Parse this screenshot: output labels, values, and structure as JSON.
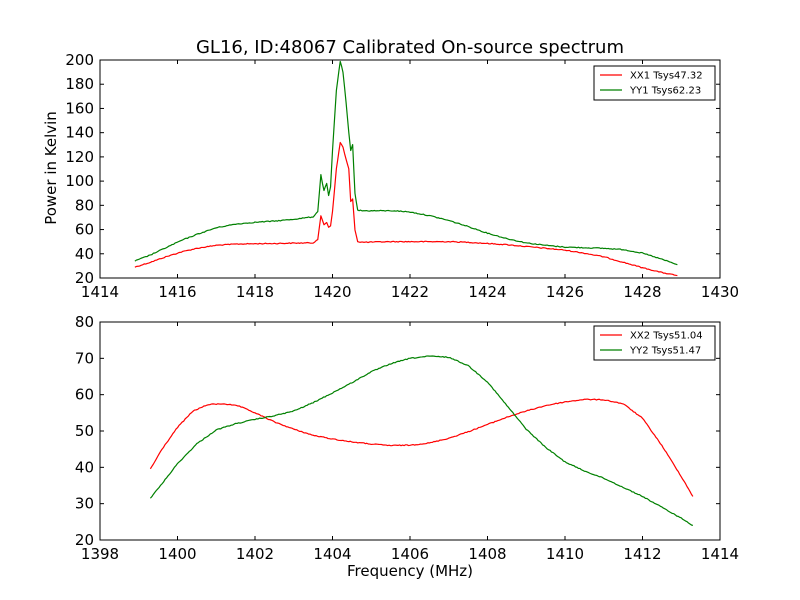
{
  "figure": {
    "title": "GL16, ID:48067 Calibrated On-source spectrum",
    "xlabel": "Frequency (MHz)",
    "ylabel": "Power in Kelvin"
  },
  "colors": {
    "series_1": "#ff0000",
    "series_2": "#008000",
    "frame": "#000000",
    "background": "#ffffff"
  },
  "chart_data": [
    {
      "type": "line",
      "title": "GL16, ID:48067 Calibrated On-source spectrum",
      "xlabel": "",
      "ylabel": "Power in Kelvin",
      "xlim": [
        1414,
        1430
      ],
      "ylim": [
        20,
        200
      ],
      "xticks": [
        "1414",
        "1416",
        "1418",
        "1420",
        "1422",
        "1424",
        "1426",
        "1428",
        "1430"
      ],
      "yticks": [
        "20",
        "40",
        "60",
        "80",
        "100",
        "120",
        "140",
        "160",
        "180",
        "200"
      ],
      "grid": false,
      "legend_position": "top-right",
      "series": [
        {
          "name": "XX1 Tsys47.32",
          "color": "#ff0000",
          "x": [
            1414.9,
            1415.3,
            1415.7,
            1416.1,
            1416.5,
            1417.0,
            1417.5,
            1418.0,
            1418.5,
            1419.0,
            1419.5,
            1419.62,
            1419.7,
            1419.78,
            1419.85,
            1419.9,
            1419.95,
            1420.0,
            1420.1,
            1420.2,
            1420.27,
            1420.35,
            1420.42,
            1420.47,
            1420.52,
            1420.58,
            1420.65,
            1420.8,
            1421.5,
            1422.0,
            1422.5,
            1423.0,
            1423.5,
            1424.0,
            1424.5,
            1425.0,
            1425.5,
            1426.0,
            1426.5,
            1427.0,
            1427.5,
            1428.0,
            1428.5,
            1428.9
          ],
          "y": [
            29,
            33,
            37.5,
            41.5,
            44.5,
            47,
            48,
            48.3,
            48.5,
            48.8,
            49,
            52,
            71,
            64,
            66,
            62,
            63,
            75,
            110,
            132,
            128,
            118,
            110,
            83,
            85,
            60,
            50,
            49.5,
            50,
            50,
            50,
            50,
            49.5,
            48.5,
            47.5,
            46,
            44.5,
            43,
            40.5,
            37.5,
            33,
            28.5,
            24.5,
            22
          ]
        },
        {
          "name": "YY1 Tsys62.23",
          "color": "#008000",
          "x": [
            1414.9,
            1415.3,
            1415.7,
            1416.1,
            1416.5,
            1417.0,
            1417.5,
            1418.0,
            1418.5,
            1419.0,
            1419.5,
            1419.62,
            1419.7,
            1419.78,
            1419.85,
            1419.9,
            1419.95,
            1420.0,
            1420.1,
            1420.2,
            1420.27,
            1420.35,
            1420.42,
            1420.47,
            1420.52,
            1420.58,
            1420.65,
            1420.8,
            1421.2,
            1421.6,
            1422.0,
            1422.5,
            1423.0,
            1423.5,
            1424.0,
            1424.5,
            1425.0,
            1425.5,
            1426.0,
            1426.5,
            1427.0,
            1427.5,
            1428.0,
            1428.5,
            1428.9
          ],
          "y": [
            34,
            39,
            45,
            51,
            56,
            61.5,
            64.5,
            66,
            67,
            68.5,
            70.5,
            75,
            105,
            92,
            98,
            88,
            95,
            125,
            175,
            199,
            190,
            165,
            140,
            125,
            130,
            90,
            76,
            75.5,
            75.5,
            75.5,
            74.5,
            71.5,
            67.5,
            62.5,
            57,
            52.5,
            49,
            47,
            45.5,
            45,
            44.5,
            43.5,
            40.5,
            35.5,
            31
          ]
        }
      ]
    },
    {
      "type": "line",
      "title": "",
      "xlabel": "Frequency (MHz)",
      "ylabel": "",
      "xlim": [
        1398,
        1414
      ],
      "ylim": [
        20,
        80
      ],
      "xticks": [
        "1398",
        "1400",
        "1402",
        "1404",
        "1406",
        "1408",
        "1410",
        "1412",
        "1414"
      ],
      "yticks": [
        "20",
        "30",
        "40",
        "50",
        "60",
        "70",
        "80"
      ],
      "grid": false,
      "legend_position": "top-right",
      "series": [
        {
          "name": "XX2 Tsys51.04",
          "color": "#ff0000",
          "x": [
            1399.3,
            1399.6,
            1400.0,
            1400.4,
            1400.8,
            1401.2,
            1401.6,
            1402.0,
            1402.5,
            1403.0,
            1403.5,
            1404.0,
            1404.5,
            1405.0,
            1405.5,
            1406.0,
            1406.5,
            1407.0,
            1407.5,
            1408.0,
            1408.5,
            1409.0,
            1409.5,
            1410.0,
            1410.5,
            1411.0,
            1411.5,
            1412.0,
            1412.5,
            1413.0,
            1413.3
          ],
          "y": [
            39.5,
            45,
            51,
            55.5,
            57.3,
            57.5,
            56.8,
            55,
            52.5,
            50.5,
            48.8,
            47.8,
            47,
            46.4,
            46,
            46.1,
            46.7,
            48,
            49.8,
            51.8,
            53.8,
            55.5,
            57,
            58,
            58.7,
            58.6,
            57.5,
            53.5,
            46,
            37.5,
            32
          ]
        },
        {
          "name": "YY2 Tsys51.47",
          "color": "#008000",
          "x": [
            1399.3,
            1399.6,
            1400.0,
            1400.5,
            1401.0,
            1401.5,
            1402.0,
            1402.5,
            1403.0,
            1403.5,
            1404.0,
            1404.5,
            1405.0,
            1405.5,
            1406.0,
            1406.5,
            1407.0,
            1407.5,
            1408.0,
            1408.5,
            1409.0,
            1409.5,
            1410.0,
            1410.5,
            1411.0,
            1411.5,
            1412.0,
            1412.5,
            1413.0,
            1413.3
          ],
          "y": [
            31.5,
            35.5,
            41,
            46.5,
            50.3,
            52,
            53.2,
            54.2,
            55.5,
            57.8,
            60.5,
            63.3,
            66.3,
            68.5,
            70,
            70.6,
            70.3,
            68,
            63.5,
            57,
            50.5,
            45.5,
            41.5,
            39,
            37,
            34.5,
            32,
            29,
            26,
            24
          ]
        }
      ]
    }
  ]
}
